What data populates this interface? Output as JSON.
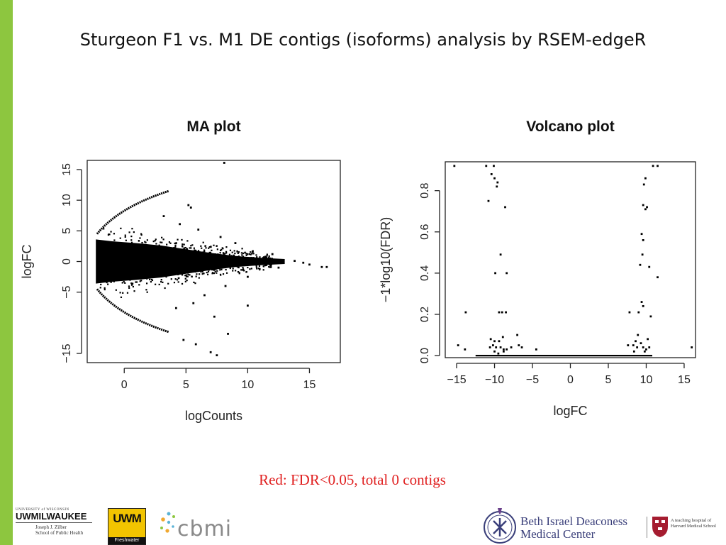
{
  "slide": {
    "title": "Sturgeon F1 vs. M1 DE contigs (isoforms) analysis by RSEM-edgeR",
    "note": "Red: FDR<0.05, total 0 contigs",
    "accent_color": "#8dc63f",
    "note_color": "#e02020"
  },
  "logos": {
    "uwm_top": "UNIVERSITY of WISCONSIN",
    "uwm_name": "UWMILWAUKEE",
    "uwm_school": [
      "Joseph J. Zilber",
      "School of Public Health"
    ],
    "freshwater_mark": "UWM",
    "freshwater_label": "Freshwater",
    "cbmi": "cbmi",
    "bidmc": [
      "Beth Israel Deaconess",
      "Medical Center"
    ],
    "harvard": [
      "A teaching hospital of",
      "Harvard Medical School"
    ]
  },
  "chart_data": [
    {
      "type": "scatter",
      "title": "MA plot",
      "xlabel": "logCounts",
      "ylabel": "logFC",
      "xlim": [
        -3,
        17.5
      ],
      "ylim": [
        -16.5,
        16.5
      ],
      "xticks": [
        0,
        5,
        10,
        15
      ],
      "yticks": [
        15,
        10,
        5,
        0,
        -5,
        -15
      ],
      "point_color": "#000000",
      "bulk": [
        {
          "x": -2.3,
          "upper": 3.6,
          "lower": -3.6
        },
        {
          "x": -1.0,
          "upper": 3.3,
          "lower": -3.3
        },
        {
          "x": 1.0,
          "upper": 3.0,
          "lower": -3.0
        },
        {
          "x": 3.0,
          "upper": 2.6,
          "lower": -2.6
        },
        {
          "x": 5.0,
          "upper": 2.0,
          "lower": -2.0
        },
        {
          "x": 7.0,
          "upper": 1.4,
          "lower": -1.4
        },
        {
          "x": 9.0,
          "upper": 0.9,
          "lower": -0.9
        },
        {
          "x": 11.0,
          "upper": 0.6,
          "lower": -0.6
        },
        {
          "x": 13.0,
          "upper": 0.4,
          "lower": -0.4
        }
      ],
      "arcs": [
        {
          "from": [
            -2.2,
            4.5
          ],
          "to": [
            3.6,
            11.5
          ]
        },
        {
          "from": [
            -2.2,
            -4.5
          ],
          "to": [
            3.6,
            -11.5
          ]
        }
      ],
      "points": [
        {
          "x": 8.1,
          "y": 16.1
        },
        {
          "x": 5.2,
          "y": 9.2
        },
        {
          "x": 5.4,
          "y": 8.8
        },
        {
          "x": 3.2,
          "y": 7.4
        },
        {
          "x": 4.5,
          "y": 6.1
        },
        {
          "x": 6.0,
          "y": 5.2
        },
        {
          "x": 7.8,
          "y": 4.0
        },
        {
          "x": 9.0,
          "y": 3.0
        },
        {
          "x": 10.4,
          "y": 1.6
        },
        {
          "x": 11.5,
          "y": 0.6
        },
        {
          "x": 12.8,
          "y": 0.2
        },
        {
          "x": 13.8,
          "y": 0.1
        },
        {
          "x": 14.5,
          "y": -0.2
        },
        {
          "x": 15.0,
          "y": -0.5
        },
        {
          "x": 16.0,
          "y": -0.9
        },
        {
          "x": 16.4,
          "y": -0.9
        },
        {
          "x": 12.0,
          "y": 1.2
        },
        {
          "x": 12.5,
          "y": -1.0
        },
        {
          "x": 10.0,
          "y": -2.5
        },
        {
          "x": 8.2,
          "y": -4.0
        },
        {
          "x": 6.5,
          "y": -5.5
        },
        {
          "x": 5.6,
          "y": -6.8
        },
        {
          "x": 4.2,
          "y": -7.6
        },
        {
          "x": 10.0,
          "y": -7.2
        },
        {
          "x": 7.3,
          "y": -9.0
        },
        {
          "x": 4.8,
          "y": -12.8
        },
        {
          "x": 5.8,
          "y": -13.5
        },
        {
          "x": 7.0,
          "y": -14.8
        },
        {
          "x": 7.5,
          "y": -15.3
        },
        {
          "x": 8.4,
          "y": -11.8
        }
      ]
    },
    {
      "type": "scatter",
      "title": "Volcano plot",
      "xlabel": "logFC",
      "ylabel": "−1*log10(FDR)",
      "xlim": [
        -16.5,
        16.5
      ],
      "ylim": [
        -0.01,
        0.94
      ],
      "xticks": [
        -15,
        -10,
        -5,
        0,
        5,
        10,
        15
      ],
      "yticks": [
        0.0,
        0.2,
        0.4,
        0.6,
        0.8
      ],
      "point_color": "#000000",
      "baseline": {
        "from": -12.5,
        "to": 10.8,
        "y": 0.0
      },
      "points": [
        {
          "x": -15.3,
          "y": 0.92
        },
        {
          "x": -11.1,
          "y": 0.92
        },
        {
          "x": -10.1,
          "y": 0.92
        },
        {
          "x": -10.4,
          "y": 0.88
        },
        {
          "x": -10.0,
          "y": 0.86
        },
        {
          "x": -9.6,
          "y": 0.84
        },
        {
          "x": -9.7,
          "y": 0.82
        },
        {
          "x": -10.8,
          "y": 0.75
        },
        {
          "x": -9.2,
          "y": 0.49
        },
        {
          "x": -8.6,
          "y": 0.72
        },
        {
          "x": -9.9,
          "y": 0.4
        },
        {
          "x": -8.4,
          "y": 0.4
        },
        {
          "x": -13.8,
          "y": 0.21
        },
        {
          "x": -9.4,
          "y": 0.21
        },
        {
          "x": -9.0,
          "y": 0.21
        },
        {
          "x": -8.5,
          "y": 0.21
        },
        {
          "x": -10.5,
          "y": 0.08
        },
        {
          "x": -10.0,
          "y": 0.07
        },
        {
          "x": -9.4,
          "y": 0.07
        },
        {
          "x": -8.9,
          "y": 0.09
        },
        {
          "x": -7.0,
          "y": 0.1
        },
        {
          "x": -6.8,
          "y": 0.05
        },
        {
          "x": -7.8,
          "y": 0.04
        },
        {
          "x": -10.6,
          "y": 0.04
        },
        {
          "x": -10.2,
          "y": 0.05
        },
        {
          "x": -9.8,
          "y": 0.04
        },
        {
          "x": -9.2,
          "y": 0.04
        },
        {
          "x": -8.8,
          "y": 0.03
        },
        {
          "x": -8.4,
          "y": 0.03
        },
        {
          "x": -6.4,
          "y": 0.04
        },
        {
          "x": -4.5,
          "y": 0.03
        },
        {
          "x": -14.8,
          "y": 0.05
        },
        {
          "x": -13.9,
          "y": 0.03
        },
        {
          "x": -10.0,
          "y": 0.02
        },
        {
          "x": -9.5,
          "y": 0.01
        },
        {
          "x": -8.8,
          "y": 0.02
        },
        {
          "x": 10.9,
          "y": 0.92
        },
        {
          "x": 11.5,
          "y": 0.92
        },
        {
          "x": 9.9,
          "y": 0.86
        },
        {
          "x": 9.7,
          "y": 0.83
        },
        {
          "x": 9.6,
          "y": 0.73
        },
        {
          "x": 10.1,
          "y": 0.72
        },
        {
          "x": 9.9,
          "y": 0.71
        },
        {
          "x": 9.4,
          "y": 0.59
        },
        {
          "x": 9.6,
          "y": 0.56
        },
        {
          "x": 9.5,
          "y": 0.49
        },
        {
          "x": 9.2,
          "y": 0.44
        },
        {
          "x": 10.4,
          "y": 0.43
        },
        {
          "x": 11.5,
          "y": 0.38
        },
        {
          "x": 9.4,
          "y": 0.26
        },
        {
          "x": 9.6,
          "y": 0.24
        },
        {
          "x": 7.8,
          "y": 0.21
        },
        {
          "x": 9.0,
          "y": 0.21
        },
        {
          "x": 10.6,
          "y": 0.19
        },
        {
          "x": 8.9,
          "y": 0.1
        },
        {
          "x": 10.2,
          "y": 0.08
        },
        {
          "x": 8.6,
          "y": 0.07
        },
        {
          "x": 9.3,
          "y": 0.06
        },
        {
          "x": 8.3,
          "y": 0.05
        },
        {
          "x": 7.6,
          "y": 0.05
        },
        {
          "x": 8.8,
          "y": 0.04
        },
        {
          "x": 9.6,
          "y": 0.04
        },
        {
          "x": 10.0,
          "y": 0.03
        },
        {
          "x": 10.4,
          "y": 0.04
        },
        {
          "x": 16.0,
          "y": 0.04
        },
        {
          "x": 8.4,
          "y": 0.02
        },
        {
          "x": 9.8,
          "y": 0.02
        }
      ]
    }
  ]
}
